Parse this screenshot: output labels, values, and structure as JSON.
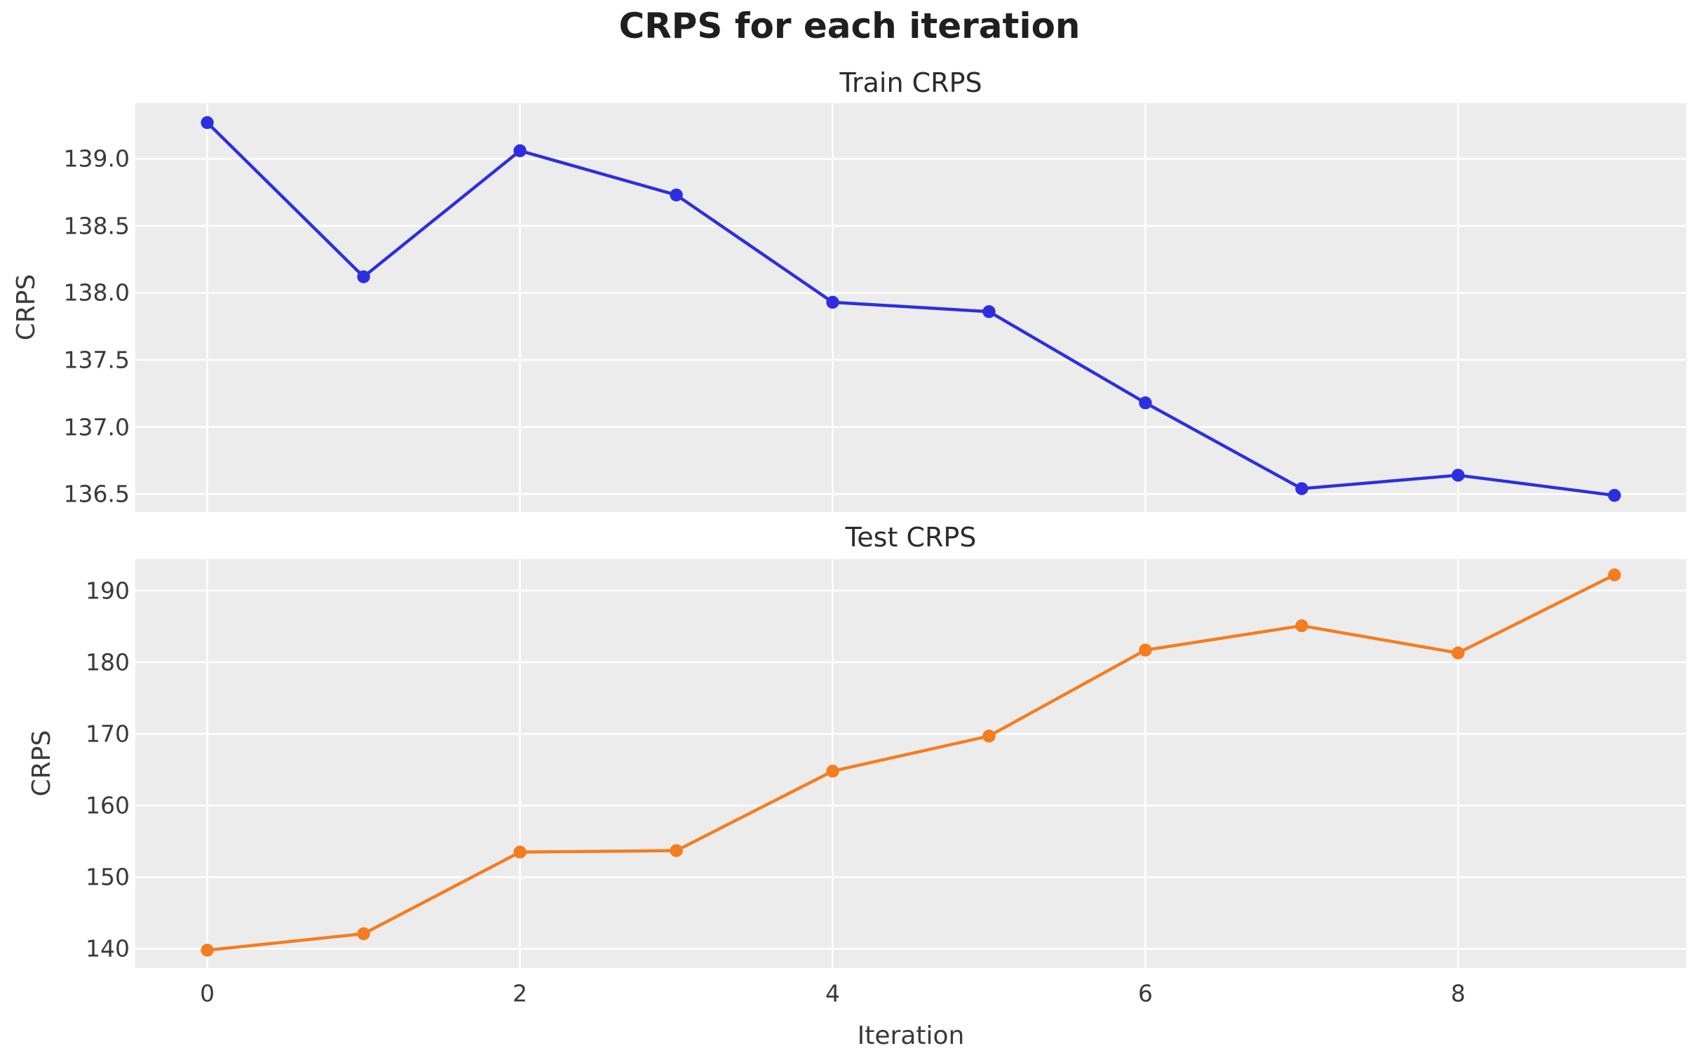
{
  "figure": {
    "suptitle": "CRPS for each iteration",
    "xlabel": "Iteration"
  },
  "style": {
    "figure_bg": "#ffffff",
    "axes_bg": "#ececec",
    "grid_color": "#ffffff",
    "tick_label_color": "#3a3a3a",
    "subtitle_color": "#2b2b2b",
    "title_color": "#1f1f1f",
    "train_color": "#2e2ee0",
    "test_color": "#f57d1f"
  },
  "chart_data": [
    {
      "type": "line",
      "title": "Train CRPS",
      "ylabel": "CRPS",
      "grid": true,
      "legend_position": "none",
      "x": [
        0,
        1,
        2,
        3,
        4,
        5,
        6,
        7,
        8,
        9
      ],
      "series": [
        {
          "name": "train-crps",
          "color": "#2e2ee0",
          "marker": "circle",
          "values": [
            139.27,
            138.12,
            139.06,
            138.73,
            137.93,
            137.86,
            137.18,
            136.54,
            136.64,
            136.49
          ]
        }
      ],
      "xlim": [
        -0.46,
        9.46
      ],
      "ylim": [
        136.365,
        139.415
      ],
      "yticks": {
        "values": [
          139.0,
          138.5,
          138.0,
          137.5,
          137.0,
          136.5
        ],
        "labels": [
          "139.0",
          "138.5",
          "138.0",
          "137.5",
          "137.0",
          "136.5"
        ]
      },
      "xticks": {
        "values": [
          0,
          2,
          4,
          6,
          8
        ],
        "labels": []
      }
    },
    {
      "type": "line",
      "title": "Test CRPS",
      "ylabel": "CRPS",
      "grid": true,
      "legend_position": "none",
      "x": [
        0,
        1,
        2,
        3,
        4,
        5,
        6,
        7,
        8,
        9
      ],
      "series": [
        {
          "name": "test-crps",
          "color": "#f57d1f",
          "marker": "circle",
          "values": [
            139.8,
            142.1,
            153.5,
            153.7,
            164.8,
            169.7,
            181.7,
            185.1,
            181.3,
            192.2
          ]
        }
      ],
      "xlim": [
        -0.46,
        9.46
      ],
      "ylim": [
        137.3,
        194.4
      ],
      "yticks": {
        "values": [
          190,
          180,
          170,
          160,
          150,
          140
        ],
        "labels": [
          "190",
          "180",
          "170",
          "160",
          "150",
          "140"
        ]
      },
      "xticks": {
        "values": [
          0,
          2,
          4,
          6,
          8
        ],
        "labels": [
          "0",
          "2",
          "4",
          "6",
          "8"
        ]
      }
    }
  ]
}
